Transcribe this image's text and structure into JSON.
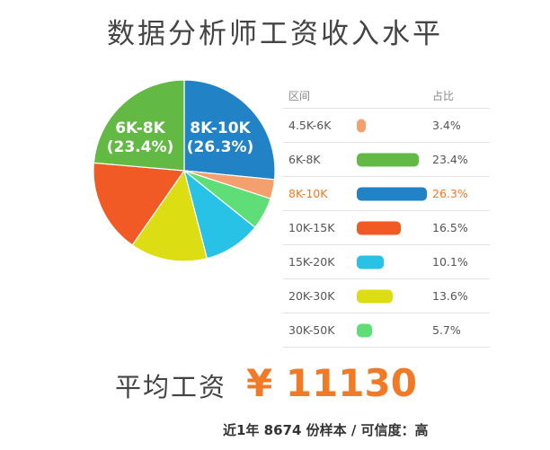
{
  "title": "数据分析师工资收入水平",
  "table": {
    "header_range": "区间",
    "header_share": "占比"
  },
  "chart_data": {
    "type": "pie",
    "unit": "%",
    "slices": [
      {
        "label": "4.5K-6K",
        "value": 3.4,
        "value_text": "3.4%",
        "color": "#f4a06e"
      },
      {
        "label": "6K-8K",
        "value": 23.4,
        "value_text": "23.4%",
        "color": "#62b943"
      },
      {
        "label": "8K-10K",
        "value": 26.3,
        "value_text": "26.3%",
        "color": "#2183c6",
        "highlight": true
      },
      {
        "label": "10K-15K",
        "value": 16.5,
        "value_text": "16.5%",
        "color": "#f15a24"
      },
      {
        "label": "15K-20K",
        "value": 10.1,
        "value_text": "10.1%",
        "color": "#27c2e6"
      },
      {
        "label": "20K-30K",
        "value": 13.6,
        "value_text": "13.6%",
        "color": "#dcdd12"
      },
      {
        "label": "30K-50K",
        "value": 5.7,
        "value_text": "5.7%",
        "color": "#5fde77"
      }
    ],
    "pie_labels": [
      {
        "name": "6K-8K",
        "value": "(23.4%)"
      },
      {
        "name": "8K-10K",
        "value": "(26.3%)"
      }
    ]
  },
  "average": {
    "label": "平均工资",
    "value": "¥ 11130"
  },
  "footnote": "近1年 8674 份样本 / 可信度：高",
  "colors": {
    "accent": "#f07a25",
    "title": "#444444"
  }
}
